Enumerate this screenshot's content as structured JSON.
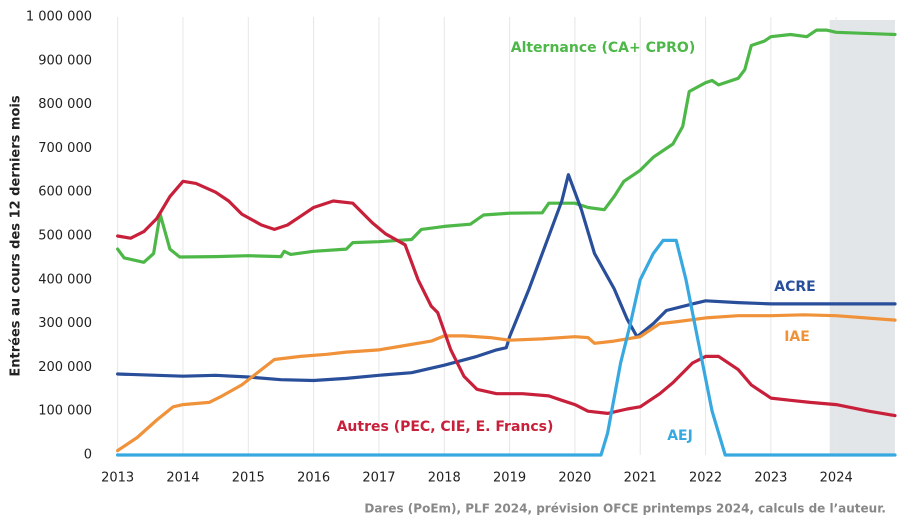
{
  "chart_data": {
    "type": "line",
    "y_label": "Entrées au cours des 12 derniers mois",
    "source": "Dares (PoEm), PLF 2024, prévision OFCE printemps 2024, calculs de l’auteur.",
    "xlim": [
      2012.73,
      2024.9
    ],
    "xticks": [
      2013,
      2014,
      2015,
      2016,
      2017,
      2018,
      2019,
      2020,
      2021,
      2022,
      2023,
      2024
    ],
    "ylim": [
      0,
      1000000
    ],
    "yticks": [
      0,
      {
        "value": 100000,
        "label": "100 000"
      },
      {
        "value": 200000,
        "label": "200 000"
      },
      {
        "value": 300000,
        "label": "300 000"
      },
      {
        "value": 400000,
        "label": "400 000"
      },
      {
        "value": 500000,
        "label": "500 000"
      },
      {
        "value": 600000,
        "label": "600 000"
      },
      {
        "value": 700000,
        "label": "700 000"
      },
      {
        "value": 800000,
        "label": "800 000"
      },
      {
        "value": 900000,
        "label": "900 000"
      },
      {
        "value": 1000000,
        "label": "1 000 000"
      }
    ],
    "grid": "x",
    "shaded_xrange": [
      2023.9,
      2024.9
    ],
    "series": [
      {
        "name": "Alternance (CA+ CPRO)",
        "color": "#4db848",
        "x": [
          2013,
          2013.1,
          2013.4,
          2013.55,
          2013.65,
          2013.8,
          2013.95,
          2014.5,
          2015,
          2015.5,
          2015.55,
          2015.65,
          2016,
          2016.5,
          2016.6,
          2017,
          2017.5,
          2017.65,
          2018,
          2018.4,
          2018.6,
          2019,
          2019.5,
          2019.6,
          2020,
          2020.2,
          2020.45,
          2020.6,
          2020.75,
          2021,
          2021.2,
          2021.5,
          2021.65,
          2021.75,
          2022,
          2022.1,
          2022.2,
          2022.5,
          2022.6,
          2022.7,
          2022.9,
          2023,
          2023.3,
          2023.55,
          2023.7,
          2023.85,
          2024,
          2024.9
        ],
        "values": [
          470000,
          450000,
          440000,
          460000,
          550000,
          470000,
          452000,
          453000,
          455000,
          453000,
          465000,
          458000,
          465000,
          470000,
          485000,
          487000,
          492000,
          515000,
          522000,
          527000,
          548000,
          552000,
          553000,
          575000,
          575000,
          565000,
          560000,
          590000,
          625000,
          650000,
          680000,
          710000,
          750000,
          830000,
          850000,
          855000,
          845000,
          860000,
          880000,
          935000,
          945000,
          955000,
          960000,
          955000,
          970000,
          970000,
          965000,
          960000
        ]
      },
      {
        "name": "ACRE",
        "color": "#2a4f9a",
        "x": [
          2013,
          2014,
          2014.5,
          2015,
          2015.5,
          2016,
          2016.5,
          2017,
          2017.5,
          2018,
          2018.5,
          2018.8,
          2018.95,
          2019,
          2019.3,
          2019.6,
          2019.8,
          2019.9,
          2020.1,
          2020.3,
          2020.6,
          2020.8,
          2020.95,
          2021.2,
          2021.4,
          2021.8,
          2022,
          2022.5,
          2023,
          2024.9
        ],
        "values": [
          185000,
          180000,
          182000,
          178000,
          172000,
          170000,
          175000,
          182000,
          188000,
          205000,
          225000,
          240000,
          245000,
          270000,
          380000,
          500000,
          580000,
          640000,
          560000,
          460000,
          380000,
          310000,
          270000,
          300000,
          330000,
          345000,
          352000,
          348000,
          345000,
          345000
        ]
      },
      {
        "name": "IAE",
        "color": "#f0923a",
        "x": [
          2013,
          2013.3,
          2013.6,
          2013.85,
          2014,
          2014.4,
          2014.6,
          2014.9,
          2015.2,
          2015.4,
          2015.8,
          2016.2,
          2016.5,
          2017,
          2017.4,
          2017.8,
          2018,
          2018.3,
          2018.7,
          2019,
          2019.5,
          2020,
          2020.2,
          2020.3,
          2020.6,
          2021,
          2021.3,
          2021.6,
          2022,
          2022.5,
          2023,
          2023.5,
          2024,
          2024.9
        ],
        "values": [
          10000,
          40000,
          80000,
          110000,
          115000,
          120000,
          135000,
          160000,
          195000,
          218000,
          225000,
          230000,
          235000,
          240000,
          250000,
          260000,
          272000,
          272000,
          268000,
          262000,
          265000,
          270000,
          268000,
          255000,
          260000,
          270000,
          300000,
          305000,
          313000,
          318000,
          318000,
          320000,
          318000,
          308000
        ]
      },
      {
        "name": "Autres (PEC, CIE, E. Francs)",
        "color": "#c8203a",
        "x": [
          2013,
          2013.2,
          2013.4,
          2013.6,
          2013.8,
          2014,
          2014.2,
          2014.5,
          2014.7,
          2014.9,
          2015.2,
          2015.4,
          2015.6,
          2015.8,
          2016,
          2016.3,
          2016.6,
          2016.9,
          2017.1,
          2017.4,
          2017.6,
          2017.8,
          2017.9,
          2018.1,
          2018.3,
          2018.5,
          2018.8,
          2019.2,
          2019.6,
          2019.8,
          2020,
          2020.2,
          2020.5,
          2020.8,
          2021,
          2021.3,
          2021.5,
          2021.8,
          2022,
          2022.2,
          2022.5,
          2022.7,
          2023,
          2023.3,
          2023.6,
          2024,
          2024.5,
          2024.9
        ],
        "values": [
          500000,
          495000,
          510000,
          540000,
          590000,
          625000,
          620000,
          600000,
          580000,
          550000,
          525000,
          515000,
          525000,
          545000,
          565000,
          580000,
          575000,
          530000,
          505000,
          480000,
          400000,
          340000,
          325000,
          240000,
          180000,
          150000,
          140000,
          140000,
          135000,
          125000,
          115000,
          100000,
          95000,
          105000,
          110000,
          140000,
          165000,
          210000,
          225000,
          225000,
          195000,
          160000,
          130000,
          125000,
          120000,
          115000,
          100000,
          90000
        ]
      },
      {
        "name": "AEJ",
        "color": "#37a9e0",
        "x": [
          2013,
          2020.4,
          2020.5,
          2020.7,
          2020.85,
          2021,
          2021.2,
          2021.35,
          2021.55,
          2021.7,
          2021.9,
          2022.1,
          2022.3,
          2024.9
        ],
        "values": [
          0,
          0,
          50000,
          210000,
          300000,
          400000,
          460000,
          490000,
          490000,
          400000,
          250000,
          100000,
          0,
          0
        ]
      }
    ]
  }
}
